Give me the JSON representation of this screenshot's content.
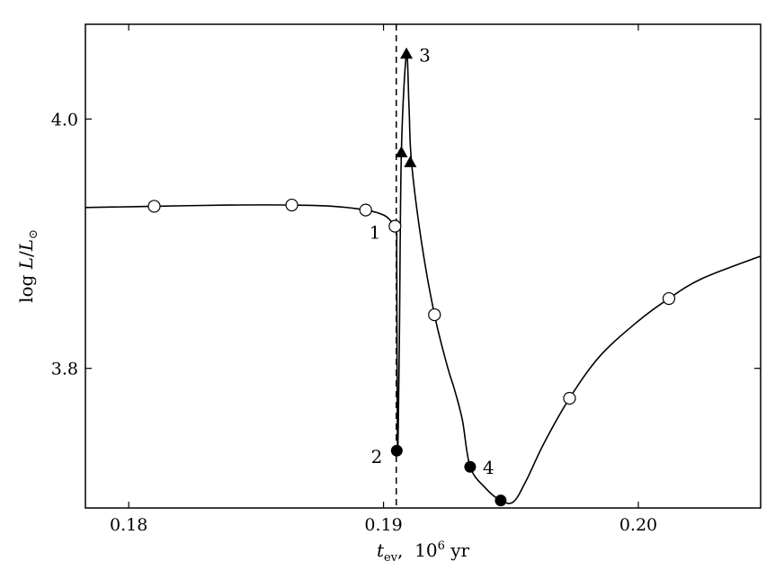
{
  "chart_data": {
    "type": "line",
    "xlabel": "t_ev, 10^6 yr",
    "ylabel": "log L/L_sun",
    "xlim": [
      0.1783,
      0.2048
    ],
    "ylim": [
      3.688,
      4.076
    ],
    "x_ticks": [
      0.18,
      0.19,
      0.2
    ],
    "x_tick_labels": [
      "0.18",
      "0.19",
      "0.20"
    ],
    "y_ticks": [
      3.8,
      4.0
    ],
    "y_tick_labels": [
      "3.8",
      "4.0"
    ],
    "grid": false,
    "vertical_dashed_line_x": 0.1905,
    "curve": [
      [
        0.1783,
        3.929
      ],
      [
        0.181,
        3.93
      ],
      [
        0.184,
        3.931
      ],
      [
        0.1864,
        3.931
      ],
      [
        0.188,
        3.93
      ],
      [
        0.1893,
        3.927
      ],
      [
        0.19,
        3.923
      ],
      [
        0.1903,
        3.918
      ],
      [
        0.1905,
        3.914
      ],
      [
        0.19052,
        3.882
      ],
      [
        0.19055,
        3.734
      ],
      [
        0.19062,
        3.82
      ],
      [
        0.1907,
        3.973
      ],
      [
        0.1909,
        4.052
      ],
      [
        0.191,
        4.01
      ],
      [
        0.1911,
        3.965
      ],
      [
        0.1915,
        3.9
      ],
      [
        0.192,
        3.843
      ],
      [
        0.1925,
        3.802
      ],
      [
        0.1928,
        3.782
      ],
      [
        0.1931,
        3.758
      ],
      [
        0.1934,
        3.721
      ],
      [
        0.194,
        3.704
      ],
      [
        0.1946,
        3.694
      ],
      [
        0.1951,
        3.693
      ],
      [
        0.1956,
        3.71
      ],
      [
        0.1963,
        3.74
      ],
      [
        0.1973,
        3.776
      ],
      [
        0.1985,
        3.81
      ],
      [
        0.2,
        3.838
      ],
      [
        0.2012,
        3.856
      ],
      [
        0.2025,
        3.872
      ],
      [
        0.2048,
        3.89
      ]
    ],
    "open_circles": [
      [
        0.181,
        3.93
      ],
      [
        0.1864,
        3.931
      ],
      [
        0.1893,
        3.927
      ],
      [
        0.19045,
        3.914
      ],
      [
        0.192,
        3.843
      ],
      [
        0.1973,
        3.776
      ],
      [
        0.2012,
        3.856
      ]
    ],
    "filled_circles": [
      [
        0.19052,
        3.734
      ],
      [
        0.1934,
        3.721
      ],
      [
        0.1946,
        3.694
      ]
    ],
    "filled_triangles": [
      [
        0.1907,
        3.973
      ],
      [
        0.1909,
        4.052
      ],
      [
        0.19105,
        3.965
      ]
    ],
    "annotations": [
      {
        "text": "1",
        "x": 0.19045,
        "y": 3.914,
        "anchor": "left"
      },
      {
        "text": "2",
        "x": 0.19052,
        "y": 3.734,
        "anchor": "left"
      },
      {
        "text": "3",
        "x": 0.1909,
        "y": 4.052,
        "anchor": "right"
      },
      {
        "text": "4",
        "x": 0.1934,
        "y": 3.721,
        "anchor": "right"
      }
    ]
  }
}
